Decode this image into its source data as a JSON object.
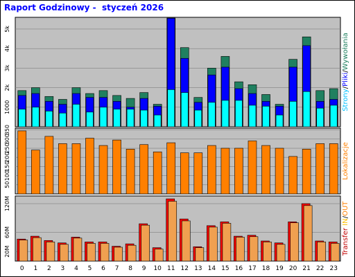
{
  "title": "Raport Godzinowy -  styczeń 2026",
  "chart_data": [
    {
      "type": "bar",
      "categories": [
        "0",
        "1",
        "2",
        "3",
        "4",
        "5",
        "6",
        "7",
        "8",
        "9",
        "10",
        "11",
        "12",
        "13",
        "14",
        "15",
        "16",
        "17",
        "18",
        "19",
        "20",
        "21",
        "22",
        "23"
      ],
      "ylim": [
        0,
        5600
      ],
      "yticks": [
        "1000",
        "2k",
        "3k",
        "4k",
        "5k"
      ],
      "side_label": {
        "parts": [
          "Strony",
          "/",
          "Pliki",
          "/",
          "Wywołania"
        ],
        "colors": [
          "#00c0ff",
          "#000000",
          "#0000ff",
          "#000000",
          "#208060"
        ]
      },
      "series": [
        {
          "name": "Wywołania",
          "color": "#208060",
          "values": [
            1850,
            2000,
            1550,
            1400,
            2000,
            1700,
            1850,
            1600,
            1450,
            1750,
            1150,
            5800,
            4050,
            1500,
            3000,
            3600,
            2300,
            2150,
            1650,
            1150,
            3450,
            4600,
            1850,
            1950
          ]
        },
        {
          "name": "Pliki",
          "color": "#0000ff",
          "values": [
            1600,
            1700,
            1300,
            1150,
            1700,
            1500,
            1500,
            1300,
            1000,
            1450,
            1050,
            5550,
            3500,
            1250,
            2650,
            3050,
            1950,
            1700,
            1300,
            1050,
            3050,
            4150,
            1300,
            1400
          ]
        },
        {
          "name": "Strony",
          "color": "#00ffff",
          "values": [
            900,
            1000,
            800,
            700,
            1150,
            750,
            1000,
            900,
            900,
            850,
            600,
            1900,
            1750,
            850,
            1250,
            1350,
            1350,
            1100,
            1050,
            600,
            1300,
            1800,
            950,
            1100
          ]
        }
      ]
    },
    {
      "type": "bar",
      "categories": [
        "0",
        "1",
        "2",
        "3",
        "4",
        "5",
        "6",
        "7",
        "8",
        "9",
        "10",
        "11",
        "12",
        "13",
        "14",
        "15",
        "16",
        "17",
        "18",
        "19",
        "20",
        "21",
        "22",
        "23"
      ],
      "ylim": [
        0,
        360
      ],
      "yticks": [
        "50",
        "100",
        "150",
        "200",
        "250",
        "300",
        "350"
      ],
      "side_label": {
        "parts": [
          "Lokalizacje"
        ],
        "colors": [
          "#ff8000"
        ]
      },
      "series": [
        {
          "name": "Lokalizacje",
          "color": "#ff8000",
          "values": [
            345,
            240,
            315,
            275,
            275,
            305,
            265,
            295,
            245,
            270,
            230,
            280,
            225,
            225,
            265,
            250,
            250,
            290,
            265,
            250,
            205,
            245,
            275,
            275
          ]
        }
      ]
    },
    {
      "type": "bar",
      "categories": [
        "0",
        "1",
        "2",
        "3",
        "4",
        "5",
        "6",
        "7",
        "8",
        "9",
        "10",
        "11",
        "12",
        "13",
        "14",
        "15",
        "16",
        "17",
        "18",
        "19",
        "20",
        "21",
        "22",
        "23"
      ],
      "ylim": [
        0,
        136
      ],
      "yticks": [
        "20M",
        "60M",
        "120M"
      ],
      "side_label": {
        "parts": [
          "Transfer",
          "  ",
          "IN",
          "/",
          "OUT"
        ],
        "colors": [
          "#c00000",
          "#000000",
          "#ffc000",
          "#000000",
          "#ff8000"
        ]
      },
      "series": [
        {
          "name": "IN",
          "color": "#ff0000",
          "values": [
            46,
            52,
            43,
            38,
            50,
            40,
            40,
            31,
            36,
            78,
            28,
            130,
            88,
            30,
            74,
            82,
            52,
            54,
            42,
            38,
            82,
            120,
            42,
            40
          ]
        },
        {
          "name": "OUT",
          "color": "#f0a050",
          "values": [
            44,
            49,
            40,
            35,
            48,
            37,
            37,
            29,
            33,
            75,
            25,
            125,
            84,
            28,
            71,
            79,
            50,
            51,
            40,
            35,
            80,
            116,
            40,
            37
          ]
        }
      ]
    }
  ]
}
